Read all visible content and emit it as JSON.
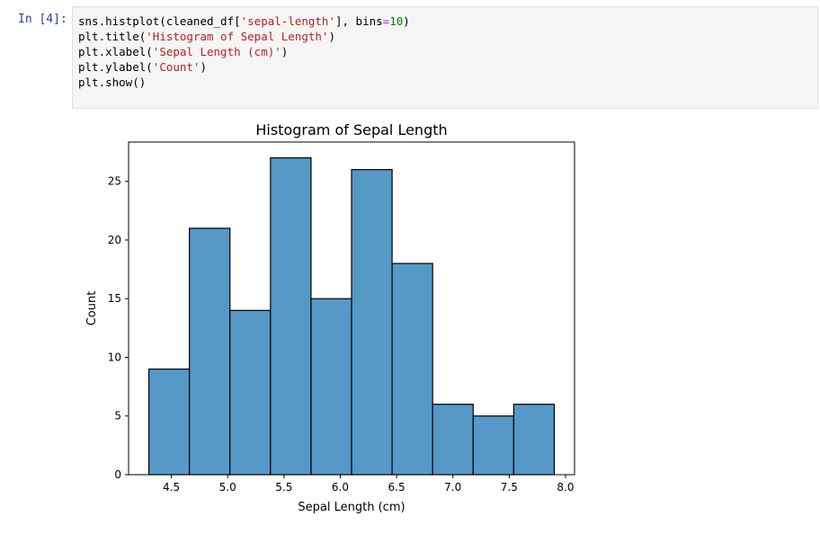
{
  "cell": {
    "prompt": "In [4]:",
    "code": {
      "line1": {
        "a": "sns.histplot(cleaned_df[",
        "b": "'sepal-length'",
        "c": "], bins",
        "d": "=",
        "e": "10",
        "f": ")"
      },
      "line2": {
        "a": "plt.title(",
        "b": "'Histogram of Sepal Length'",
        "c": ")"
      },
      "line3": {
        "a": "plt.xlabel(",
        "b": "'Sepal Length (cm)'",
        "c": ")"
      },
      "line4": {
        "a": "plt.ylabel(",
        "b": "'Count'",
        "c": ")"
      },
      "line5": {
        "a": "plt.show()"
      }
    }
  },
  "chart_data": {
    "type": "bar",
    "title": "Histogram of Sepal Length",
    "xlabel": "Sepal Length (cm)",
    "ylabel": "Count",
    "bin_edges": [
      4.3,
      4.66,
      5.02,
      5.38,
      5.74,
      6.1,
      6.46,
      6.82,
      7.18,
      7.54,
      7.9
    ],
    "values": [
      9,
      21,
      14,
      27,
      15,
      26,
      18,
      6,
      5,
      6
    ],
    "xlim": [
      4.12,
      8.08
    ],
    "ylim": [
      0,
      28.35
    ],
    "xticks": [
      "4.5",
      "5.0",
      "5.5",
      "6.0",
      "6.5",
      "7.0",
      "7.5",
      "8.0"
    ],
    "yticks": [
      "0",
      "5",
      "10",
      "15",
      "20",
      "25"
    ],
    "bar_color": "#5698c6",
    "edge_color": "#000000",
    "grid": false
  }
}
